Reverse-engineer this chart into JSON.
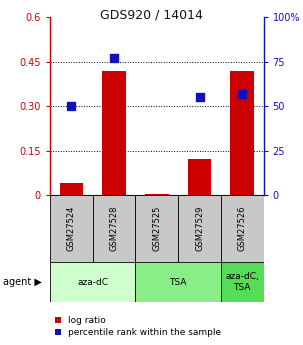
{
  "title": "GDS920 / 14014",
  "samples": [
    "GSM27524",
    "GSM27528",
    "GSM27525",
    "GSM27529",
    "GSM27526"
  ],
  "log_ratio": [
    0.04,
    0.42,
    0.002,
    0.12,
    0.42
  ],
  "percentile_rank": [
    0.5,
    0.77,
    null,
    0.55,
    0.57
  ],
  "bar_color": "#cc0000",
  "dot_color": "#1111bb",
  "ylim_left": [
    0,
    0.6
  ],
  "ylim_right": [
    0,
    1.0
  ],
  "yticks_left": [
    0,
    0.15,
    0.3,
    0.45,
    0.6
  ],
  "ytick_labels_left": [
    "0",
    "0.15",
    "0.30",
    "0.45",
    "0.6"
  ],
  "yticks_right": [
    0,
    0.25,
    0.5,
    0.75,
    1.0
  ],
  "ytick_labels_right": [
    "0",
    "25",
    "50",
    "75",
    "100%"
  ],
  "agent_groups": [
    {
      "label": "aza-dC",
      "cols": [
        0,
        1
      ],
      "color": "#ccffcc"
    },
    {
      "label": "TSA",
      "cols": [
        2,
        3
      ],
      "color": "#88ee88"
    },
    {
      "label": "aza-dC,\nTSA",
      "cols": [
        4
      ],
      "color": "#55dd55"
    }
  ],
  "legend_bar_label": "log ratio",
  "legend_dot_label": "percentile rank within the sample",
  "title_color": "#111111",
  "left_axis_color": "#cc0000",
  "right_axis_color": "#1111bb",
  "bar_width": 0.55,
  "dot_size": 28,
  "sample_box_color": "#c8c8c8"
}
